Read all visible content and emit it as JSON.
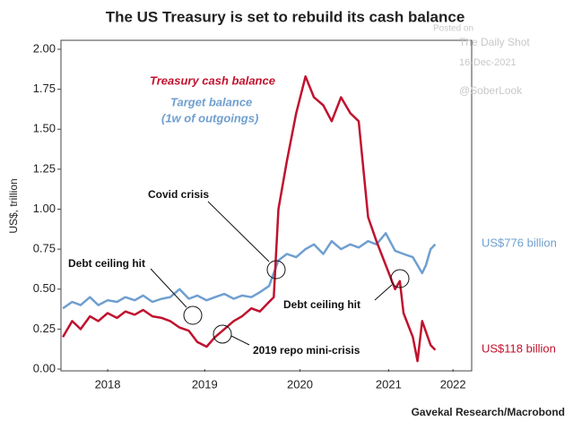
{
  "chart_data": {
    "type": "line",
    "title": "The US Treasury is set to rebuild its cash balance",
    "ylabel": "US$, trillion",
    "source": "Gavekal Research/Macrobond",
    "watermark": [
      "Posted on",
      "The Daily Shot",
      "16-Dec-2021",
      "@SoberLook"
    ],
    "xlim": [
      2018.0,
      2022.4
    ],
    "xticks": [
      {
        "value": 2018.5,
        "label": "2018"
      },
      {
        "value": 2019.54,
        "label": "2019"
      },
      {
        "value": 2020.56,
        "label": "2020"
      },
      {
        "value": 2021.51,
        "label": "2021"
      },
      {
        "value": 2022.2,
        "label": "2022"
      }
    ],
    "ylim": [
      0,
      2.0
    ],
    "yticks": [
      {
        "value": 0,
        "label": "0.00"
      },
      {
        "value": 0.25,
        "label": "0.25"
      },
      {
        "value": 0.5,
        "label": "0.50"
      },
      {
        "value": 0.75,
        "label": "0.75"
      },
      {
        "value": 1.0,
        "label": "1.00"
      },
      {
        "value": 1.25,
        "label": "1.25"
      },
      {
        "value": 1.5,
        "label": "1.50"
      },
      {
        "value": 1.75,
        "label": "1.75"
      },
      {
        "value": 2.0,
        "label": "2.00"
      }
    ],
    "series": [
      {
        "name": "Treasury cash balance",
        "color": "#c0122e",
        "x": [
          2018.02,
          2018.12,
          2018.21,
          2018.31,
          2018.4,
          2018.5,
          2018.6,
          2018.69,
          2018.79,
          2018.88,
          2018.98,
          2019.08,
          2019.17,
          2019.27,
          2019.37,
          2019.46,
          2019.56,
          2019.65,
          2019.75,
          2019.85,
          2019.94,
          2020.04,
          2020.13,
          2020.23,
          2020.28,
          2020.33,
          2020.42,
          2020.52,
          2020.62,
          2020.71,
          2020.81,
          2020.9,
          2021.0,
          2021.1,
          2021.19,
          2021.29,
          2021.38,
          2021.48,
          2021.58,
          2021.63,
          2021.67,
          2021.77,
          2021.82,
          2021.87,
          2021.96,
          2022.01
        ],
        "values": [
          0.2,
          0.3,
          0.25,
          0.33,
          0.3,
          0.35,
          0.32,
          0.36,
          0.34,
          0.37,
          0.33,
          0.32,
          0.3,
          0.26,
          0.24,
          0.17,
          0.14,
          0.2,
          0.25,
          0.3,
          0.33,
          0.38,
          0.36,
          0.42,
          0.45,
          1.0,
          1.3,
          1.6,
          1.83,
          1.7,
          1.65,
          1.55,
          1.7,
          1.6,
          1.55,
          0.95,
          0.8,
          0.65,
          0.5,
          0.55,
          0.35,
          0.2,
          0.05,
          0.3,
          0.15,
          0.12
        ]
      },
      {
        "name": "Target balance",
        "color": "#6f9fcf",
        "x": [
          2018.02,
          2018.12,
          2018.21,
          2018.31,
          2018.4,
          2018.5,
          2018.6,
          2018.69,
          2018.79,
          2018.88,
          2018.98,
          2019.08,
          2019.17,
          2019.27,
          2019.37,
          2019.46,
          2019.56,
          2019.65,
          2019.75,
          2019.85,
          2019.94,
          2020.04,
          2020.13,
          2020.23,
          2020.28,
          2020.33,
          2020.42,
          2020.52,
          2020.62,
          2020.71,
          2020.81,
          2020.9,
          2021.0,
          2021.1,
          2021.19,
          2021.29,
          2021.38,
          2021.48,
          2021.58,
          2021.67,
          2021.77,
          2021.87,
          2021.91,
          2021.96,
          2022.01
        ],
        "values": [
          0.38,
          0.42,
          0.4,
          0.45,
          0.4,
          0.43,
          0.42,
          0.45,
          0.43,
          0.46,
          0.42,
          0.44,
          0.45,
          0.5,
          0.44,
          0.46,
          0.43,
          0.45,
          0.47,
          0.44,
          0.46,
          0.45,
          0.48,
          0.52,
          0.6,
          0.68,
          0.72,
          0.7,
          0.75,
          0.78,
          0.72,
          0.8,
          0.75,
          0.78,
          0.76,
          0.8,
          0.78,
          0.85,
          0.74,
          0.72,
          0.7,
          0.6,
          0.65,
          0.75,
          0.78
        ]
      }
    ],
    "series_note": "(1w of outgoings)",
    "end_labels": [
      "US$776 billion",
      "US$118 billion"
    ],
    "annotations": [
      "Covid crisis",
      "Debt ceiling hit",
      "2019 repo mini-crisis",
      "Debt ceiling hit"
    ]
  }
}
